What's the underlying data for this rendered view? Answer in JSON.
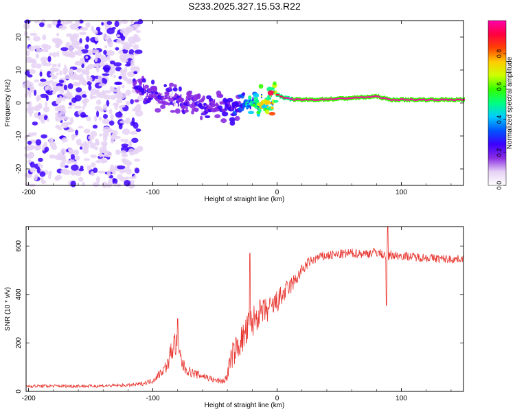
{
  "figure_title": "S233.2025.327.15.53.R22",
  "colors": {
    "snr_line": "#e8342e",
    "colormap": [
      "#ffffff",
      "#e6d2f5",
      "#8a2be2",
      "#3c00ff",
      "#0055ff",
      "#00ccff",
      "#00ff80",
      "#33ff00",
      "#ccff00",
      "#ffcc00",
      "#ff4400",
      "#ff0040",
      "#ff00aa"
    ]
  },
  "chart_data": [
    {
      "type": "heatmap",
      "title": "S233.2025.327.15.53.R22",
      "xlabel": "Height of straight line (km)",
      "ylabel": "Frequency (Hz)",
      "xlim": [
        -202,
        150
      ],
      "ylim": [
        -25,
        25
      ],
      "xticks": [
        -200,
        -100,
        0,
        100
      ],
      "yticks": [
        -20,
        -10,
        0,
        10,
        20
      ],
      "xtick_labels": [
        "-200",
        "-100",
        "0",
        "100"
      ],
      "ytick_labels": [
        "-20",
        "-10",
        "0",
        "10",
        "20"
      ],
      "colorbar": {
        "label": "Normalized spectral amplitude",
        "range": [
          0,
          1
        ],
        "ticks": [
          "0.0",
          "0.2",
          "0.4",
          "0.6",
          "0.8"
        ],
        "tick_values": [
          0.0,
          0.2,
          0.4,
          0.6,
          0.8
        ]
      },
      "ridge": {
        "x": [
          -115,
          -105,
          -95,
          -85,
          -75,
          -65,
          -55,
          -45,
          -35,
          -28,
          -20,
          -12,
          -5,
          0,
          5,
          15,
          30,
          50,
          80,
          90,
          110,
          150
        ],
        "freq": [
          5,
          3,
          2,
          1,
          0,
          -1,
          0,
          -1,
          -2,
          -1,
          0,
          0.5,
          1,
          2.5,
          1.5,
          1,
          1,
          1.3,
          2,
          1,
          1,
          1
        ],
        "amplitude": [
          0.25,
          0.25,
          0.22,
          0.22,
          0.25,
          0.2,
          0.25,
          0.22,
          0.3,
          0.35,
          0.5,
          0.7,
          0.8,
          0.9,
          0.95,
          1.0,
          1.0,
          1.0,
          1.0,
          1.0,
          1.0,
          1.0
        ]
      },
      "noise_region": {
        "x_from": -202,
        "x_to": -110,
        "freq_from": -25,
        "freq_to": 25,
        "amplitude": 0.1
      }
    },
    {
      "type": "line",
      "title": "",
      "xlabel": "Height of straight line (km)",
      "ylabel": "SNR (10 * v/v)",
      "xlim": [
        -202,
        150
      ],
      "ylim": [
        0,
        680
      ],
      "xticks": [
        -200,
        -100,
        0,
        100
      ],
      "yticks": [
        0,
        200,
        400,
        600
      ],
      "xtick_labels": [
        "-200",
        "-100",
        "0",
        "100"
      ],
      "ytick_labels": [
        "0",
        "200",
        "400",
        "600"
      ],
      "series": [
        {
          "name": "SNR",
          "x": [
            -202,
            -180,
            -150,
            -120,
            -110,
            -100,
            -95,
            -88,
            -85,
            -82,
            -78,
            -75,
            -70,
            -65,
            -60,
            -55,
            -50,
            -45,
            -42,
            -40,
            -38,
            -35,
            -30,
            -25,
            -22,
            -20,
            -18,
            -15,
            -10,
            -5,
            0,
            5,
            10,
            15,
            20,
            25,
            30,
            35,
            40,
            50,
            60,
            70,
            80,
            85,
            88,
            89,
            90,
            92,
            95,
            100,
            110,
            120,
            130,
            140,
            150
          ],
          "y": [
            22,
            22,
            22,
            25,
            30,
            45,
            70,
            110,
            170,
            200,
            140,
            100,
            80,
            70,
            65,
            55,
            45,
            42,
            45,
            70,
            120,
            160,
            200,
            240,
            270,
            280,
            300,
            320,
            330,
            340,
            370,
            400,
            430,
            460,
            500,
            530,
            545,
            555,
            560,
            565,
            570,
            568,
            575,
            565,
            560,
            540,
            560,
            565,
            560,
            560,
            555,
            552,
            548,
            545,
            548
          ],
          "noise_amp": [
            7,
            7,
            7,
            7,
            8,
            12,
            18,
            28,
            50,
            60,
            50,
            30,
            20,
            18,
            18,
            15,
            12,
            12,
            15,
            30,
            45,
            55,
            60,
            70,
            80,
            70,
            65,
            60,
            55,
            55,
            50,
            45,
            40,
            30,
            25,
            22,
            20,
            20,
            20,
            20,
            20,
            20,
            20,
            20,
            20,
            20,
            20,
            20,
            20,
            18,
            18,
            18,
            18,
            18,
            15
          ]
        }
      ],
      "annotations": [
        {
          "label": "spike",
          "x": -80,
          "y": 300
        },
        {
          "label": "spike",
          "x": -22,
          "y": 570
        },
        {
          "label": "spike",
          "x": 89,
          "y": 680
        },
        {
          "label": "dip",
          "x": 88,
          "y": 355
        }
      ]
    }
  ]
}
